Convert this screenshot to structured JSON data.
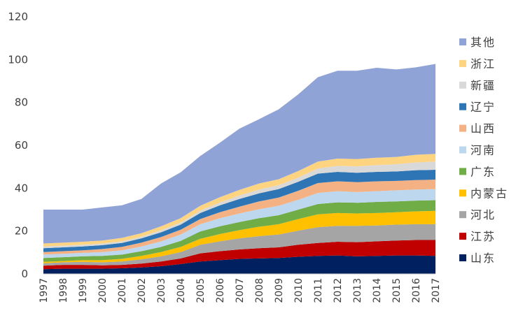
{
  "chart_data": {
    "type": "area",
    "stacked": true,
    "title": "",
    "xlabel": "",
    "ylabel": "",
    "ylim": [
      0,
      120
    ],
    "yticks": [
      0,
      20,
      40,
      60,
      80,
      100,
      120
    ],
    "grid": false,
    "legend_position": "right",
    "categories": [
      "1997",
      "1998",
      "1999",
      "2000",
      "2001",
      "2002",
      "2003",
      "2004",
      "2005",
      "2006",
      "2007",
      "2008",
      "2009",
      "2010",
      "2011",
      "2012",
      "2013",
      "2014",
      "2015",
      "2016",
      "2017"
    ],
    "series": [
      {
        "name": "山东",
        "color": "#002060",
        "values": [
          2.2,
          2.4,
          2.4,
          2.4,
          2.6,
          3.0,
          3.6,
          4.6,
          5.8,
          6.4,
          7.0,
          7.2,
          7.4,
          8.0,
          8.4,
          8.6,
          8.2,
          8.4,
          8.6,
          8.6,
          8.4
        ]
      },
      {
        "name": "江苏",
        "color": "#C00000",
        "values": [
          1.6,
          1.8,
          1.8,
          1.6,
          1.6,
          1.8,
          2.2,
          2.6,
          3.8,
          4.2,
          4.4,
          4.8,
          5.0,
          5.6,
          6.0,
          6.4,
          6.6,
          6.8,
          7.0,
          7.2,
          7.4
        ]
      },
      {
        "name": "河北",
        "color": "#A5A5A5",
        "values": [
          1.2,
          1.2,
          1.4,
          1.4,
          1.6,
          2.0,
          2.4,
          3.0,
          4.0,
          4.6,
          5.2,
          5.6,
          6.0,
          6.6,
          7.4,
          7.4,
          7.6,
          7.4,
          7.4,
          7.4,
          7.4
        ]
      },
      {
        "name": "内蒙古",
        "color": "#FFC000",
        "values": [
          0.6,
          0.6,
          0.8,
          1.0,
          1.2,
          1.6,
          2.0,
          2.4,
          2.8,
          3.4,
          3.8,
          4.4,
          4.8,
          5.4,
          6.0,
          6.0,
          5.8,
          5.8,
          5.8,
          6.0,
          6.2
        ]
      },
      {
        "name": "广东",
        "color": "#70AD47",
        "values": [
          1.8,
          1.8,
          1.8,
          2.0,
          2.0,
          2.2,
          2.4,
          2.8,
          3.4,
          3.6,
          3.8,
          4.0,
          4.2,
          4.4,
          4.8,
          5.0,
          5.0,
          5.2,
          5.0,
          5.0,
          5.0
        ]
      },
      {
        "name": "河南",
        "color": "#BDD7EE",
        "values": [
          1.6,
          1.6,
          1.6,
          1.8,
          2.0,
          2.2,
          2.6,
          3.0,
          3.4,
          3.8,
          4.0,
          4.2,
          4.4,
          4.6,
          5.2,
          5.2,
          5.0,
          5.0,
          5.2,
          5.2,
          5.2
        ]
      },
      {
        "name": "山西",
        "color": "#F4B183",
        "values": [
          1.2,
          1.2,
          1.2,
          1.4,
          1.6,
          1.8,
          2.0,
          2.2,
          2.4,
          2.8,
          3.2,
          3.6,
          3.8,
          4.2,
          4.6,
          4.6,
          4.6,
          4.6,
          4.4,
          4.4,
          4.4
        ]
      },
      {
        "name": "辽宁",
        "color": "#2E75B6",
        "values": [
          1.8,
          1.8,
          1.8,
          1.8,
          1.8,
          2.0,
          2.2,
          2.4,
          2.8,
          3.2,
          3.6,
          3.8,
          4.0,
          4.2,
          4.4,
          4.4,
          4.4,
          4.4,
          4.4,
          4.6,
          4.6
        ]
      },
      {
        "name": "新疆",
        "color": "#D9D9D9",
        "values": [
          0.8,
          0.8,
          0.8,
          0.8,
          0.8,
          0.8,
          1.0,
          1.0,
          1.2,
          1.4,
          1.6,
          1.8,
          1.8,
          2.0,
          2.4,
          2.8,
          3.0,
          3.2,
          3.4,
          3.6,
          3.8
        ]
      },
      {
        "name": "浙江",
        "color": "#FFD480",
        "values": [
          1.4,
          1.4,
          1.4,
          1.4,
          1.6,
          1.6,
          1.8,
          2.0,
          2.2,
          2.4,
          2.6,
          2.8,
          2.8,
          3.0,
          3.2,
          3.4,
          3.4,
          3.4,
          3.4,
          3.6,
          3.6
        ]
      },
      {
        "name": "其他",
        "color": "#8FA3D6",
        "values": [
          15.8,
          15.4,
          15.0,
          15.4,
          15.2,
          16.0,
          20.0,
          21.4,
          23.2,
          25.4,
          28.6,
          30.0,
          32.6,
          35.8,
          39.4,
          41.0,
          41.2,
          42.0,
          40.8,
          40.8,
          42.0
        ]
      }
    ],
    "legend_order": [
      "其他",
      "浙江",
      "新疆",
      "辽宁",
      "山西",
      "河南",
      "广东",
      "内蒙古",
      "河北",
      "江苏",
      "山东"
    ]
  }
}
